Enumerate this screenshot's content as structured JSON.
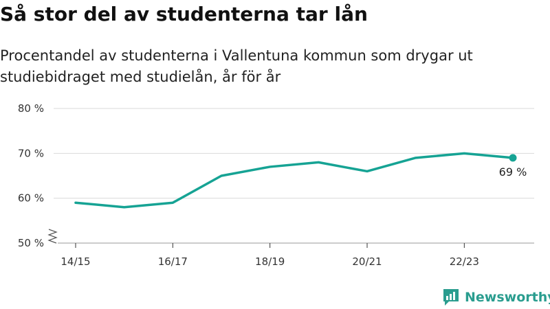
{
  "title": "Så stor del av studenterna tar lån",
  "subtitle": "Procentandel av studenterna i Vallentuna kommun som drygar ut studiebidraget med studielån, år för år",
  "brand": {
    "name": "Newsworthy",
    "color": "#2a9d8f"
  },
  "chart_data": {
    "type": "line",
    "title": "Så stor del av studenterna tar lån",
    "x": [
      "14/15",
      "15/16",
      "16/17",
      "17/18",
      "18/19",
      "19/20",
      "20/21",
      "21/22",
      "22/23",
      "23/24"
    ],
    "series": [
      {
        "values": [
          59,
          58,
          59,
          65,
          67,
          68,
          66,
          69,
          70,
          69
        ],
        "color": "#16a394"
      }
    ],
    "x_tick_labels": [
      "14/15",
      "16/17",
      "18/19",
      "20/21",
      "22/23"
    ],
    "y_ticks": [
      50,
      60,
      70,
      80
    ],
    "y_tick_labels": [
      "50 %",
      "60 %",
      "70 %",
      "80 %"
    ],
    "ylim": [
      50,
      80
    ],
    "y_axis_break": true,
    "grid": true,
    "end_label": "69 %"
  }
}
